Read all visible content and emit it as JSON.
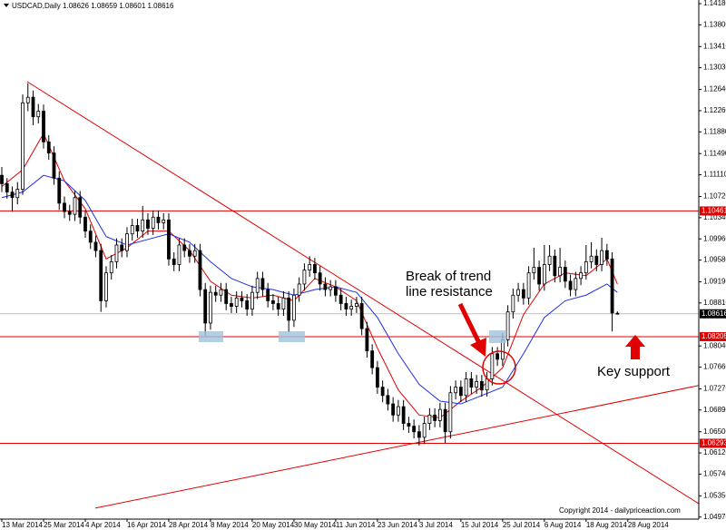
{
  "chart_data": {
    "type": "candlestick",
    "symbol": "USDCAD,Daily",
    "candles": [
      [
        1.111,
        1.1125,
        1.108,
        1.1095
      ],
      [
        1.1095,
        1.1105,
        1.1068,
        1.108
      ],
      [
        1.108,
        1.109,
        1.1045,
        1.107
      ],
      [
        1.107,
        1.1098,
        1.1058,
        1.1085
      ],
      [
        1.1085,
        1.1255,
        1.1075,
        1.124
      ],
      [
        1.124,
        1.1275,
        1.1225,
        1.125
      ],
      [
        1.125,
        1.1262,
        1.12,
        1.1215
      ],
      [
        1.1215,
        1.1238,
        1.1203,
        1.1225
      ],
      [
        1.1225,
        1.1237,
        1.1158,
        1.117
      ],
      [
        1.117,
        1.1182,
        1.1138,
        1.115
      ],
      [
        1.115,
        1.1162,
        1.1093,
        1.1105
      ],
      [
        1.1105,
        1.1117,
        1.1048,
        1.106
      ],
      [
        1.106,
        1.1072,
        1.1033,
        1.1045
      ],
      [
        1.1045,
        1.1057,
        1.1028,
        1.104
      ],
      [
        1.104,
        1.1082,
        1.1028,
        1.107
      ],
      [
        1.107,
        1.1082,
        1.1023,
        1.1035
      ],
      [
        1.1035,
        1.1047,
        1.0998,
        1.101
      ],
      [
        1.101,
        1.1022,
        1.0978,
        1.099
      ],
      [
        1.099,
        1.1002,
        1.0963,
        1.0975
      ],
      [
        1.0975,
        1.0987,
        1.0865,
        1.0885
      ],
      [
        1.0885,
        1.0947,
        1.0873,
        1.0935
      ],
      [
        1.0935,
        1.0967,
        1.0923,
        1.0955
      ],
      [
        1.0955,
        1.0997,
        1.0943,
        1.0985
      ],
      [
        1.0985,
        1.0997,
        1.0963,
        1.0975
      ],
      [
        1.0975,
        1.1017,
        1.0963,
        1.1005
      ],
      [
        1.1005,
        1.1032,
        1.0993,
        1.102
      ],
      [
        1.102,
        1.1032,
        1.0998,
        1.101
      ],
      [
        1.101,
        1.1055,
        1.0998,
        1.103
      ],
      [
        1.103,
        1.1042,
        1.1003,
        1.1015
      ],
      [
        1.1015,
        1.1047,
        1.1003,
        1.1035
      ],
      [
        1.1035,
        1.1047,
        1.1013,
        1.1025
      ],
      [
        1.1025,
        1.1042,
        1.1013,
        1.103
      ],
      [
        1.103,
        1.1042,
        1.0948,
        1.096
      ],
      [
        1.096,
        1.0972,
        1.0938,
        1.095
      ],
      [
        1.095,
        1.0997,
        1.0938,
        1.0985
      ],
      [
        1.0985,
        1.0997,
        1.0963,
        1.0975
      ],
      [
        1.0975,
        1.0987,
        1.0953,
        1.0965
      ],
      [
        1.0965,
        1.0987,
        1.0953,
        1.0975
      ],
      [
        1.0975,
        1.0987,
        1.0893,
        1.0905
      ],
      [
        1.0905,
        1.0917,
        1.0822,
        1.0845
      ],
      [
        1.0845,
        1.0912,
        1.0833,
        1.09
      ],
      [
        1.09,
        1.0912,
        1.0883,
        1.0895
      ],
      [
        1.0895,
        1.0917,
        1.0883,
        1.0905
      ],
      [
        1.0905,
        1.0917,
        1.0868,
        1.088
      ],
      [
        1.088,
        1.0892,
        1.0863,
        1.0875
      ],
      [
        1.0875,
        1.0902,
        1.0863,
        1.089
      ],
      [
        1.089,
        1.0902,
        1.0873,
        1.0885
      ],
      [
        1.0885,
        1.0897,
        1.0858,
        1.087
      ],
      [
        1.087,
        1.0912,
        1.0858,
        1.09
      ],
      [
        1.09,
        1.0937,
        1.0888,
        1.0925
      ],
      [
        1.0925,
        1.0937,
        1.0893,
        1.0905
      ],
      [
        1.0905,
        1.0917,
        1.0873,
        1.0885
      ],
      [
        1.0885,
        1.0897,
        1.0868,
        1.088
      ],
      [
        1.088,
        1.0892,
        1.0858,
        1.087
      ],
      [
        1.087,
        1.0902,
        1.0858,
        1.089
      ],
      [
        1.089,
        1.0902,
        1.0828,
        1.085
      ],
      [
        1.085,
        1.0907,
        1.0838,
        1.0895
      ],
      [
        1.0895,
        1.0927,
        1.0883,
        1.0915
      ],
      [
        1.0915,
        1.0952,
        1.0903,
        1.094
      ],
      [
        1.094,
        1.0965,
        1.0928,
        1.095
      ],
      [
        1.095,
        1.0962,
        1.0923,
        1.0935
      ],
      [
        1.0935,
        1.0947,
        1.0903,
        1.0915
      ],
      [
        1.0915,
        1.0927,
        1.0893,
        1.0905
      ],
      [
        1.0905,
        1.0922,
        1.0893,
        1.091
      ],
      [
        1.091,
        1.0922,
        1.0883,
        1.0895
      ],
      [
        1.0895,
        1.0907,
        1.0868,
        1.088
      ],
      [
        1.088,
        1.0892,
        1.0858,
        1.087
      ],
      [
        1.087,
        1.0887,
        1.0858,
        1.0875
      ],
      [
        1.0875,
        1.0892,
        1.0863,
        1.088
      ],
      [
        1.088,
        1.0892,
        1.0823,
        1.0835
      ],
      [
        1.0835,
        1.0847,
        1.0783,
        1.0795
      ],
      [
        1.0795,
        1.0807,
        1.0753,
        1.0765
      ],
      [
        1.0765,
        1.0777,
        1.0718,
        1.073
      ],
      [
        1.073,
        1.0742,
        1.0703,
        1.0715
      ],
      [
        1.0715,
        1.0727,
        1.0688,
        1.07
      ],
      [
        1.07,
        1.0712,
        1.0668,
        1.068
      ],
      [
        1.068,
        1.0707,
        1.0668,
        1.0695
      ],
      [
        1.0695,
        1.0707,
        1.0653,
        1.0665
      ],
      [
        1.0665,
        1.0677,
        1.0648,
        1.066
      ],
      [
        1.066,
        1.0672,
        1.0638,
        1.065
      ],
      [
        1.065,
        1.0662,
        1.0625,
        1.064
      ],
      [
        1.064,
        1.0677,
        1.0628,
        1.0665
      ],
      [
        1.0665,
        1.0692,
        1.0653,
        1.068
      ],
      [
        1.068,
        1.0692,
        1.0658,
        1.067
      ],
      [
        1.067,
        1.0702,
        1.0658,
        1.069
      ],
      [
        1.069,
        1.0702,
        1.063,
        1.065
      ],
      [
        1.065,
        1.0732,
        1.0638,
        1.072
      ],
      [
        1.072,
        1.0742,
        1.0708,
        1.073
      ],
      [
        1.073,
        1.0742,
        1.0703,
        1.0715
      ],
      [
        1.0715,
        1.0757,
        1.0703,
        1.0745
      ],
      [
        1.0745,
        1.0757,
        1.0718,
        1.073
      ],
      [
        1.073,
        1.0752,
        1.0718,
        1.074
      ],
      [
        1.074,
        1.0752,
        1.0713,
        1.0725
      ],
      [
        1.0725,
        1.0757,
        1.0713,
        1.0745
      ],
      [
        1.0745,
        1.0802,
        1.0733,
        1.079
      ],
      [
        1.079,
        1.0802,
        1.0768,
        1.078
      ],
      [
        1.078,
        1.0827,
        1.0768,
        1.0815
      ],
      [
        1.0815,
        1.0877,
        1.0803,
        1.0865
      ],
      [
        1.0865,
        1.0907,
        1.0853,
        1.0895
      ],
      [
        1.0895,
        1.0917,
        1.0883,
        1.0905
      ],
      [
        1.0905,
        1.0917,
        1.0878,
        1.089
      ],
      [
        1.089,
        1.0947,
        1.0878,
        1.0935
      ],
      [
        1.0935,
        1.098,
        1.0923,
        1.0945
      ],
      [
        1.0945,
        1.0957,
        1.0903,
        1.0915
      ],
      [
        1.0915,
        1.0985,
        1.0903,
        1.095
      ],
      [
        1.095,
        1.0985,
        1.0938,
        1.0965
      ],
      [
        1.0965,
        1.0977,
        1.0918,
        1.093
      ],
      [
        1.093,
        1.098,
        1.0918,
        1.0945
      ],
      [
        1.0945,
        1.0957,
        1.0908,
        1.092
      ],
      [
        1.092,
        1.0932,
        1.0893,
        1.0905
      ],
      [
        1.0905,
        1.0937,
        1.0893,
        1.0925
      ],
      [
        1.0925,
        1.0947,
        1.0913,
        1.0935
      ],
      [
        1.0935,
        1.0985,
        1.0923,
        1.0955
      ],
      [
        1.0955,
        1.099,
        1.0943,
        1.0965
      ],
      [
        1.0965,
        1.0977,
        1.0938,
        1.095
      ],
      [
        1.095,
        1.0998,
        1.0938,
        1.0975
      ],
      [
        1.0975,
        1.0987,
        1.0948,
        1.096
      ],
      [
        1.096,
        1.0972,
        1.083,
        1.0863
      ],
      [
        1.08626,
        1.08659,
        1.08601,
        1.08616
      ]
    ],
    "series": [
      {
        "color": "#e00000",
        "x": [
          0,
          4,
          8,
          12,
          16,
          20,
          24,
          28,
          32,
          36,
          40,
          44,
          48,
          52,
          56,
          60,
          64,
          68,
          72,
          76,
          80,
          84,
          88,
          92,
          96,
          100,
          104,
          108,
          112,
          116,
          118
        ],
        "values": [
          1.109,
          1.112,
          1.1185,
          1.11,
          1.105,
          1.096,
          1.098,
          1.101,
          1.101,
          1.0975,
          1.092,
          1.0895,
          1.089,
          1.0895,
          1.0885,
          1.0925,
          1.091,
          1.0885,
          1.08,
          1.0725,
          1.068,
          1.0675,
          1.0705,
          1.073,
          1.0765,
          1.086,
          1.0915,
          1.0935,
          1.093,
          1.096,
          1.0915
        ]
      },
      {
        "color": "#1f2fe0",
        "x": [
          0,
          4,
          8,
          12,
          16,
          20,
          24,
          28,
          32,
          36,
          40,
          44,
          48,
          52,
          56,
          60,
          64,
          68,
          72,
          76,
          80,
          84,
          88,
          92,
          96,
          100,
          104,
          108,
          112,
          116,
          118
        ],
        "values": [
          1.107,
          1.108,
          1.111,
          1.11,
          1.1065,
          1.1,
          1.0985,
          1.0995,
          1.1005,
          1.099,
          1.0955,
          1.0925,
          1.091,
          1.0905,
          1.0895,
          1.0905,
          1.091,
          1.09,
          1.0855,
          1.079,
          1.0735,
          1.0705,
          1.07,
          1.0715,
          1.073,
          1.079,
          1.0855,
          1.0885,
          1.0895,
          1.0915,
          1.09
        ]
      }
    ],
    "trend_lines": [
      {
        "color": "#e00000",
        "x": [
          4.87,
          133.6
        ],
        "values": [
          1.1278,
          1.0521
        ]
      },
      {
        "color": "#e00000",
        "x": [
          17.9,
          133.6
        ],
        "values": [
          1.0513,
          1.0733
        ]
      }
    ],
    "levels": [
      {
        "value": 1.10461,
        "color": "#e00000",
        "label_color": "#e00000"
      },
      {
        "value": 1.08616,
        "color": "#c0c0c0",
        "label_color": "#000000"
      },
      {
        "value": 1.08205,
        "color": "#e00000",
        "label_color": "#e00000"
      },
      {
        "value": 1.06293,
        "color": "#e00000",
        "label_color": "#e00000"
      }
    ],
    "xlim": [
      -0.35,
      133.6
    ],
    "ylim": [
      1.04933,
      1.14245
    ],
    "yticks": [
      {
        "value": 1.1418,
        "label": "1.14180"
      },
      {
        "value": 1.138,
        "label": "1.13800"
      },
      {
        "value": 1.1341,
        "label": "1.13410"
      },
      {
        "value": 1.1303,
        "label": "1.13030"
      },
      {
        "value": 1.1264,
        "label": "1.12640"
      },
      {
        "value": 1.1226,
        "label": "1.12260"
      },
      {
        "value": 1.1188,
        "label": "1.11880"
      },
      {
        "value": 1.1149,
        "label": "1.11490"
      },
      {
        "value": 1.1111,
        "label": "1.11110"
      },
      {
        "value": 1.1072,
        "label": "1.10720"
      },
      {
        "value": 1.1034,
        "label": "1.10340"
      },
      {
        "value": 1.0996,
        "label": "1.09960"
      },
      {
        "value": 1.0958,
        "label": "1.09580"
      },
      {
        "value": 1.0919,
        "label": "1.09190"
      },
      {
        "value": 1.0881,
        "label": "1.08810"
      },
      {
        "value": 1.0804,
        "label": "1.08040"
      },
      {
        "value": 1.0766,
        "label": "1.07660"
      },
      {
        "value": 1.0727,
        "label": "1.07270"
      },
      {
        "value": 1.0689,
        "label": "1.06890"
      },
      {
        "value": 1.065,
        "label": "1.06500"
      },
      {
        "value": 1.0612,
        "label": "1.06120"
      },
      {
        "value": 1.0574,
        "label": "1.05740"
      },
      {
        "value": 1.0535,
        "label": "1.05350"
      },
      {
        "value": 1.0497,
        "label": "1.04970"
      }
    ],
    "xticks": [
      {
        "value": 0,
        "label": "13 Mar 2014"
      },
      {
        "value": 8,
        "label": "25 Mar 2014"
      },
      {
        "value": 16,
        "label": "4 Apr 2014"
      },
      {
        "value": 24,
        "label": "16 Apr 2014"
      },
      {
        "value": 32,
        "label": "28 Apr 2014"
      },
      {
        "value": 40,
        "label": "8 May 2014"
      },
      {
        "value": 48,
        "label": "20 May 2014"
      },
      {
        "value": 56,
        "label": "30 May 2014"
      },
      {
        "value": 64,
        "label": "11 Jun 2014"
      },
      {
        "value": 72,
        "label": "23 Jun 2014"
      },
      {
        "value": 80,
        "label": "3 Jul 2014"
      },
      {
        "value": 88,
        "label": "15 Jul 2014"
      },
      {
        "value": 96,
        "label": "25 Jul 2014"
      },
      {
        "value": 104,
        "label": "6 Aug 2014"
      },
      {
        "value": 112,
        "label": "18 Aug 2014"
      },
      {
        "value": 120,
        "label": "28 Aug 2014"
      }
    ],
    "annotations": [
      "Break of trend",
      "line resistance",
      "Key support"
    ],
    "copyright": "Copyright 2014 - dailypriceaction.com"
  }
}
